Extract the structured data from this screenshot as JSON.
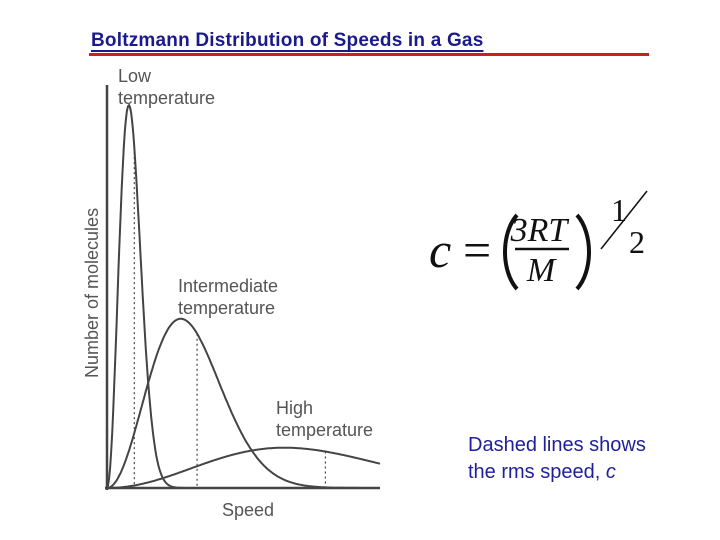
{
  "slide": {
    "title": "Boltzmann Distribution of Speeds in a Gas",
    "note_line1": "Dashed lines shows",
    "note_line2_prefix": "the rms speed, ",
    "note_line2_var": "c"
  },
  "formula": {
    "lhs": "c",
    "equals": "=",
    "numerator": "3RT",
    "denominator": "M",
    "exp_num": "1",
    "exp_den": "2"
  },
  "colors": {
    "title": "#1a1a8c",
    "title_rule": "#cc1f1f",
    "note_text": "#1f1f9a",
    "curve": "#444444"
  },
  "chart_data": {
    "type": "line",
    "xlabel": "Speed",
    "ylabel": "Number of molecules",
    "xlim": [
      0,
      10
    ],
    "ylim": [
      0,
      1
    ],
    "grid": false,
    "series": [
      {
        "name": "Low temperature",
        "peak_speed": 0.8,
        "peak_height": 0.95,
        "rms_speed": 1.0
      },
      {
        "name": "Intermediate temperature",
        "peak_speed": 2.7,
        "peak_height": 0.42,
        "rms_speed": 3.3
      },
      {
        "name": "High temperature",
        "peak_speed": 6.5,
        "peak_height": 0.1,
        "rms_speed": 8.0
      }
    ],
    "curve_labels": [
      {
        "line1": "Low",
        "line2": "temperature"
      },
      {
        "line1": "Intermediate",
        "line2": "temperature"
      },
      {
        "line1": "High",
        "line2": "temperature"
      }
    ]
  }
}
